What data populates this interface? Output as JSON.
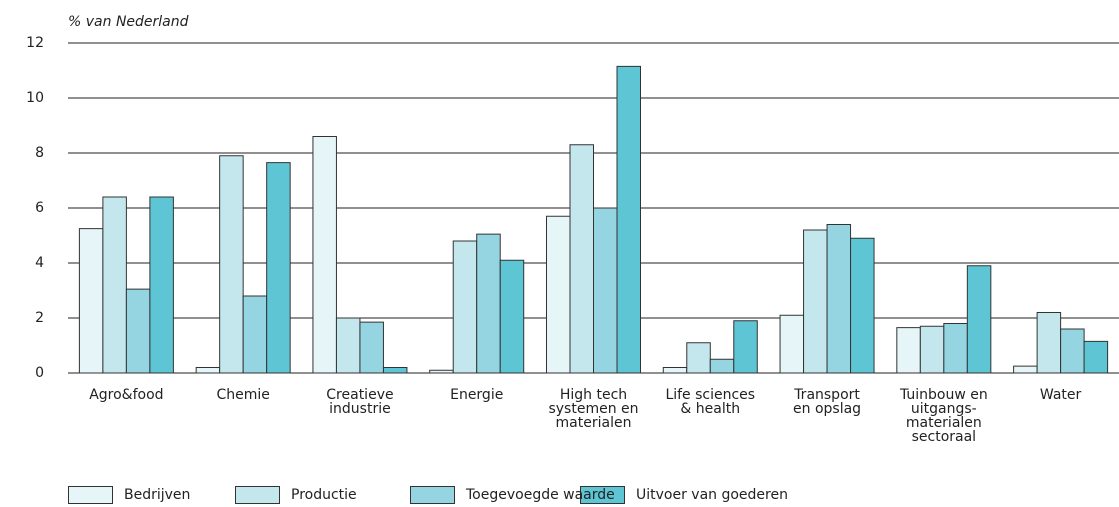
{
  "chart_data": {
    "type": "bar",
    "unit_label": "% van Nederland",
    "categories": [
      "Agro&food",
      "Chemie",
      "Creatieve\nindustrie",
      "Energie",
      "High tech\nsystemen en\nmaterialen",
      "Life sciences\n& health",
      "Transport\nen opslag",
      "Tuinbouw en\nuitgangs-\nmaterialen\nsectoraal",
      "Water"
    ],
    "series": [
      {
        "name": "Bedrijven",
        "color": "#e6f5f7",
        "values": [
          5.25,
          0.2,
          8.6,
          0.1,
          5.7,
          0.2,
          2.1,
          1.65,
          0.25
        ]
      },
      {
        "name": "Productie",
        "color": "#c4e7ee",
        "values": [
          6.4,
          7.9,
          2.0,
          4.8,
          8.3,
          1.1,
          5.2,
          1.7,
          2.2
        ]
      },
      {
        "name": "Toegevoegde waarde",
        "color": "#95d5e1",
        "values": [
          3.05,
          2.8,
          1.85,
          5.05,
          6.0,
          0.5,
          5.4,
          1.8,
          1.6
        ]
      },
      {
        "name": "Uitvoer van goederen",
        "color": "#5ec5d5",
        "values": [
          6.4,
          7.65,
          0.2,
          4.1,
          11.15,
          1.9,
          4.9,
          3.9,
          1.15
        ]
      }
    ],
    "ylim": [
      0,
      12
    ],
    "yticks": [
      0,
      2,
      4,
      6,
      8,
      10,
      12
    ],
    "grid": true
  }
}
